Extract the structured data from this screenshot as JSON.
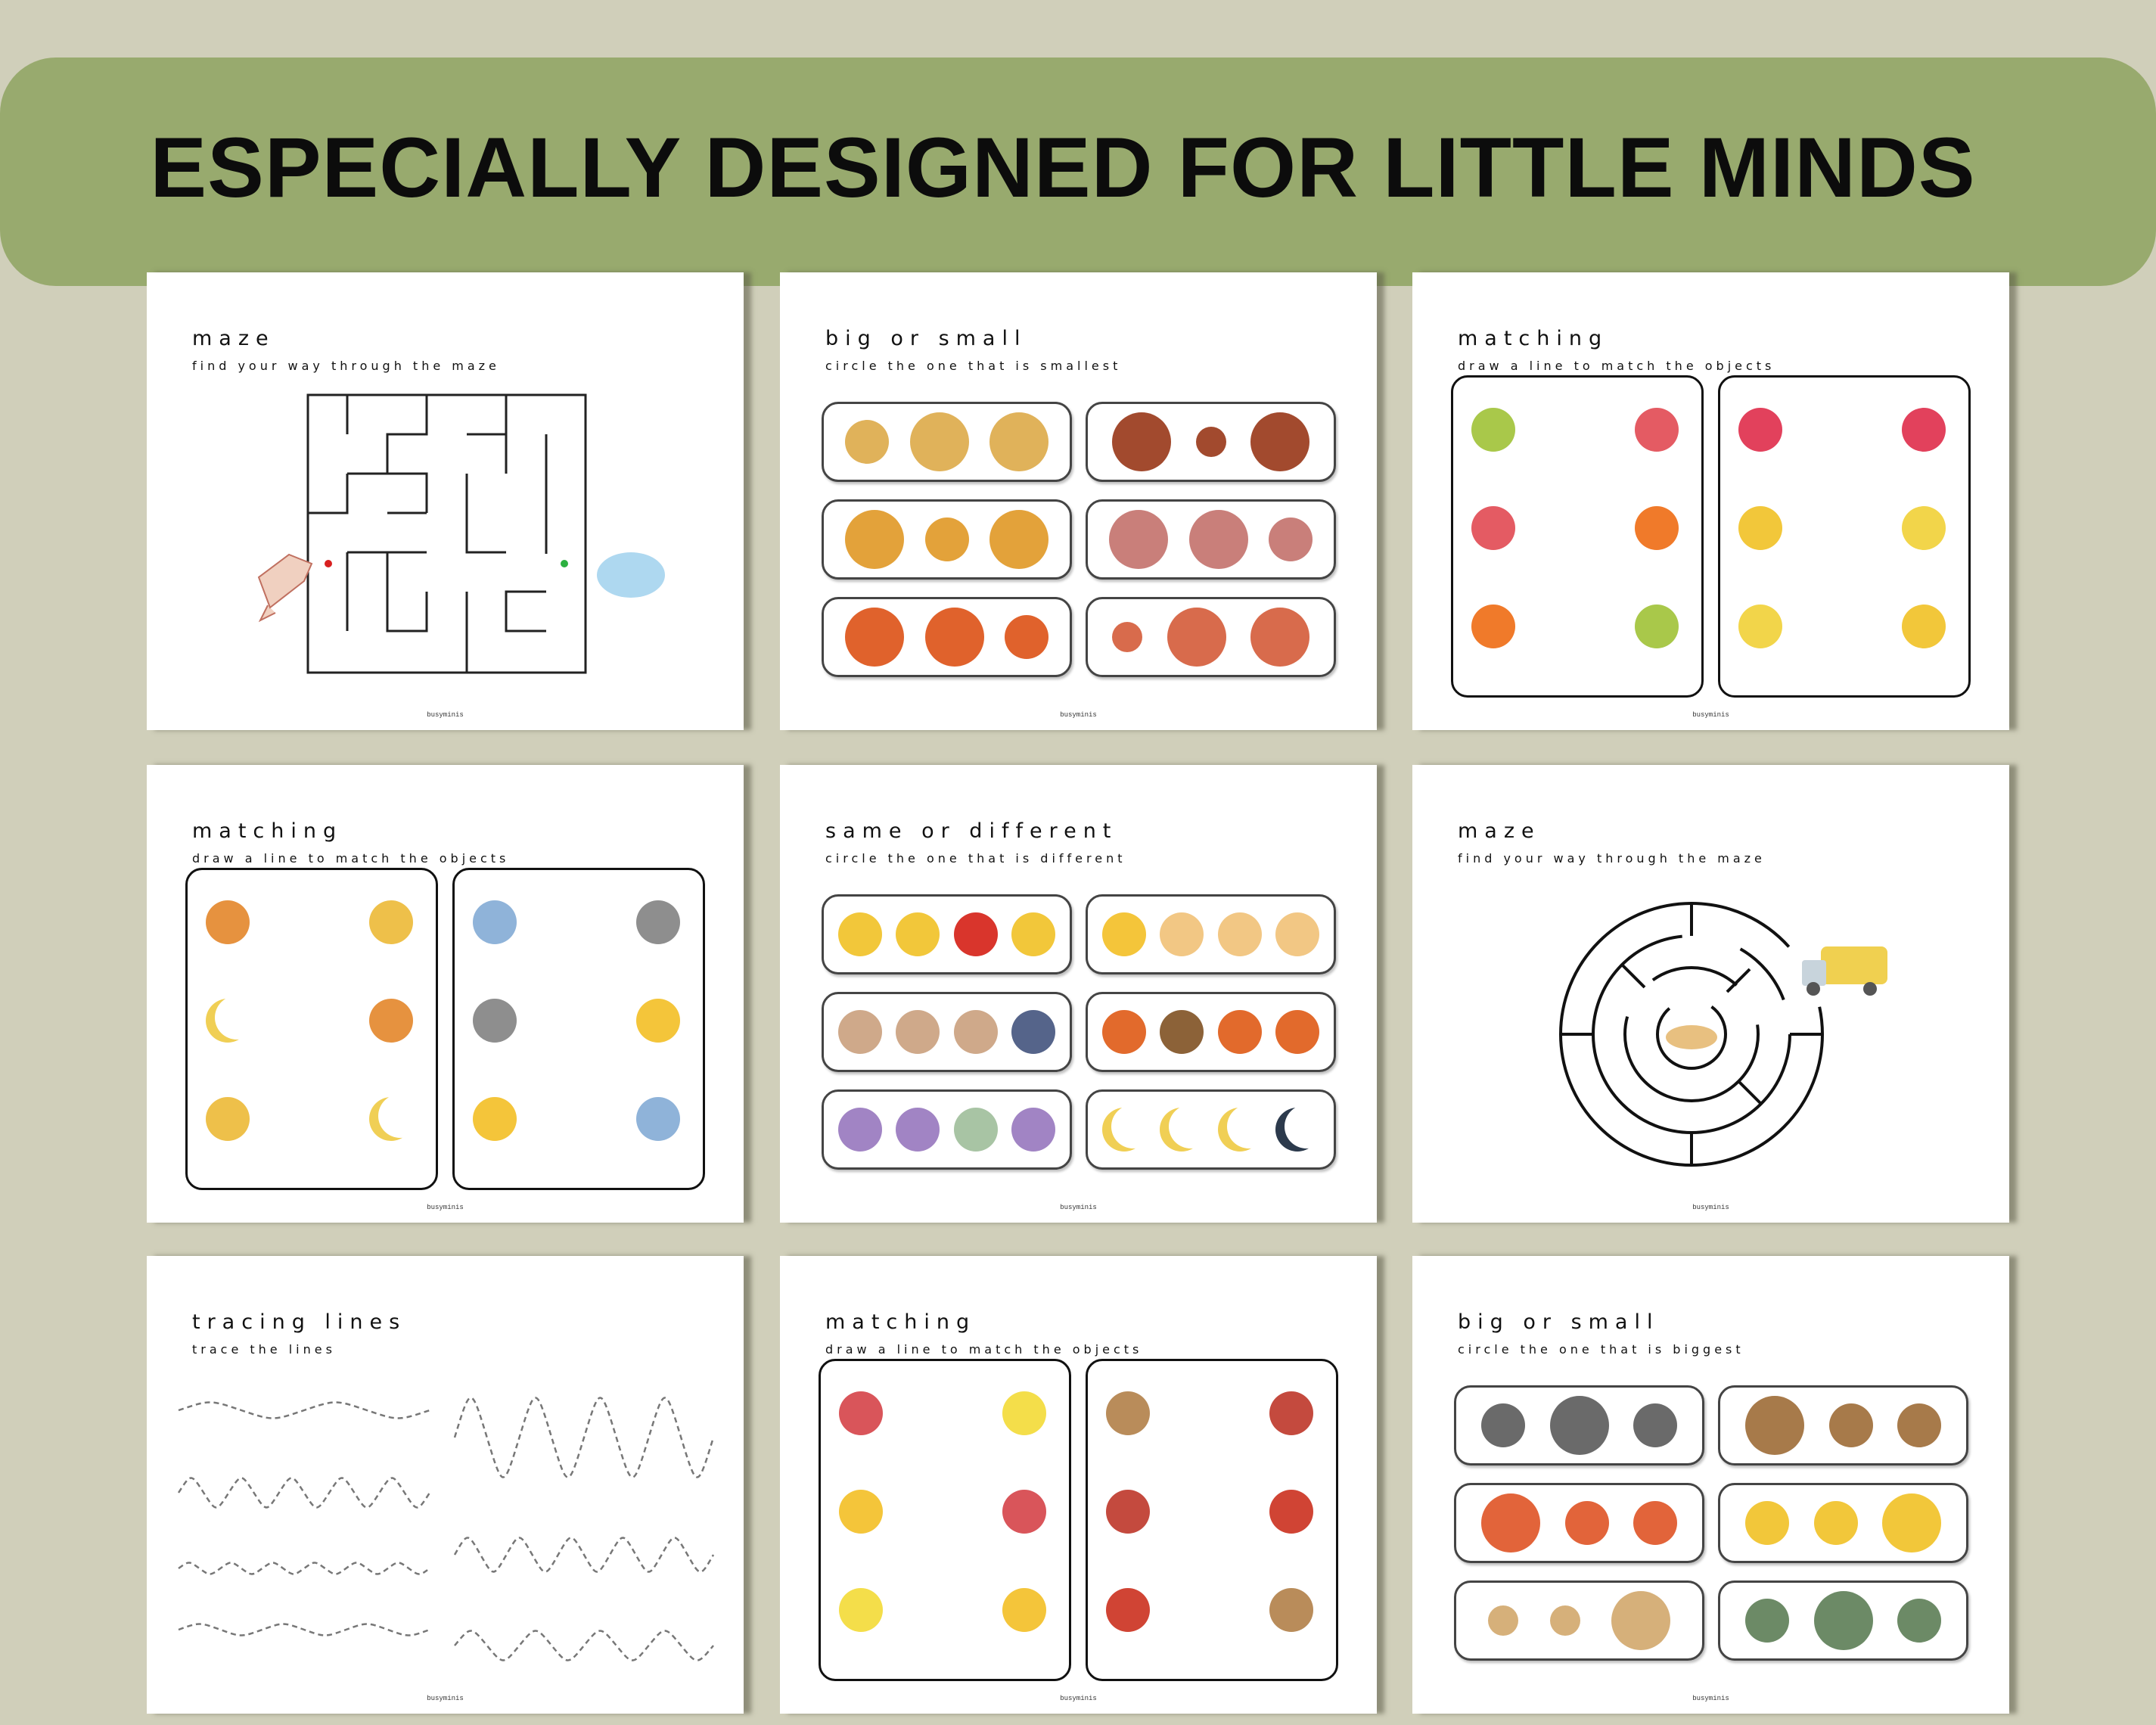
{
  "banner": {
    "title": "ESPECIALLY DESIGNED FOR LITTLE MINDS",
    "color": "#98aa6e"
  },
  "background": "#d0cfba",
  "icon_colors": {
    "sandwich": "#e0b25a",
    "mushroom": "#a24a2e",
    "sunflower": "#e3a23a",
    "book": "#c97f7a",
    "basketball": "#e0622c",
    "mug": "#d86b4c",
    "pear": "#a9c84a",
    "watermelon": "#e45b63",
    "orange": "#f07a2a",
    "strawberry": "#e2415c",
    "pineapple": "#f2c73a",
    "banana": "#f2d54a",
    "orange-moon": "#e6923f",
    "stars": "#eec04a",
    "crescent-moon": "#f0cf55",
    "cloud": "#8fb3d9",
    "rain-cloud": "#8e8e8e",
    "sun": "#f4c53a",
    "apple": "#d9352c",
    "rocket": "#cfa98a",
    "rocket-blue": "#55648a",
    "pumpkin": "#e26a2c",
    "acorn": "#8c6238",
    "octopus": "#a184c4",
    "octopus-green": "#a8c4a4",
    "dark-moon": "#2c3a4c",
    "sun-outline": "#f2c784",
    "basket": "#d9555a",
    "lemonade": "#f4de4a",
    "boots": "#b98c5a",
    "sled": "#c44a3e",
    "winter-hat": "#d04434",
    "cow": "#6a6a6a",
    "snail": "#a77a4a",
    "rocket-red": "#e2643a",
    "train": "#d6b07a",
    "bucket": "#6c8a66"
  },
  "pages": [
    {
      "type": "maze-square",
      "title": "maze",
      "subtitle": "find your way through the maze",
      "footer": "busyminis",
      "start_icon": "kite",
      "end_icon": "cloud"
    },
    {
      "type": "rows",
      "title": "big or small",
      "subtitle": "circle the one that is smallest",
      "footer": "busyminis",
      "boxes": [
        [
          {
            "icon": "sandwich",
            "size": "m"
          },
          {
            "icon": "sandwich",
            "size": "l"
          },
          {
            "icon": "sandwich",
            "size": "l"
          }
        ],
        [
          {
            "icon": "mushroom",
            "size": "l"
          },
          {
            "icon": "mushroom",
            "size": "s"
          },
          {
            "icon": "mushroom",
            "size": "l"
          }
        ],
        [
          {
            "icon": "sunflower",
            "size": "l"
          },
          {
            "icon": "sunflower",
            "size": "m"
          },
          {
            "icon": "sunflower",
            "size": "l"
          }
        ],
        [
          {
            "icon": "book",
            "size": "l"
          },
          {
            "icon": "book",
            "size": "l"
          },
          {
            "icon": "book",
            "size": "m"
          }
        ],
        [
          {
            "icon": "basketball",
            "size": "l"
          },
          {
            "icon": "basketball",
            "size": "l"
          },
          {
            "icon": "basketball",
            "size": "m"
          }
        ],
        [
          {
            "icon": "mug",
            "size": "s"
          },
          {
            "icon": "mug",
            "size": "l"
          },
          {
            "icon": "mug",
            "size": "l"
          }
        ]
      ]
    },
    {
      "type": "matching",
      "title": "matching",
      "subtitle": "draw a line to match the objects",
      "footer": "busyminis",
      "panels": [
        [
          [
            "pear",
            "watermelon"
          ],
          [
            "watermelon",
            "orange"
          ],
          [
            "orange",
            "pear"
          ]
        ],
        [
          [
            "strawberry",
            "strawberry"
          ],
          [
            "pineapple",
            "banana"
          ],
          [
            "banana",
            "pineapple"
          ]
        ]
      ]
    },
    {
      "type": "matching",
      "title": "matching",
      "subtitle": "draw a line to match the objects",
      "footer": "busyminis",
      "panels": [
        [
          [
            "orange-moon",
            "stars"
          ],
          [
            "crescent-moon",
            "orange-moon"
          ],
          [
            "stars",
            "crescent-moon"
          ]
        ],
        [
          [
            "cloud",
            "rain-cloud"
          ],
          [
            "rain-cloud",
            "sun"
          ],
          [
            "sun",
            "cloud"
          ]
        ]
      ]
    },
    {
      "type": "rows",
      "title": "same or different",
      "subtitle": "circle the one that is different",
      "footer": "busyminis",
      "boxes": [
        [
          {
            "icon": "pineapple",
            "size": "m"
          },
          {
            "icon": "pineapple",
            "size": "m"
          },
          {
            "icon": "apple",
            "size": "m"
          },
          {
            "icon": "pineapple",
            "size": "m"
          }
        ],
        [
          {
            "icon": "sun",
            "size": "m"
          },
          {
            "icon": "sun-outline",
            "size": "m"
          },
          {
            "icon": "sun-outline",
            "size": "m"
          },
          {
            "icon": "sun-outline",
            "size": "m"
          }
        ],
        [
          {
            "icon": "rocket",
            "size": "m"
          },
          {
            "icon": "rocket",
            "size": "m"
          },
          {
            "icon": "rocket",
            "size": "m"
          },
          {
            "icon": "rocket-blue",
            "size": "m"
          }
        ],
        [
          {
            "icon": "pumpkin",
            "size": "m"
          },
          {
            "icon": "acorn",
            "size": "m"
          },
          {
            "icon": "pumpkin",
            "size": "m"
          },
          {
            "icon": "pumpkin",
            "size": "m"
          }
        ],
        [
          {
            "icon": "octopus",
            "size": "m"
          },
          {
            "icon": "octopus",
            "size": "m"
          },
          {
            "icon": "octopus-green",
            "size": "m"
          },
          {
            "icon": "octopus",
            "size": "m"
          }
        ],
        [
          {
            "icon": "crescent-moon",
            "size": "m"
          },
          {
            "icon": "crescent-moon",
            "size": "m"
          },
          {
            "icon": "crescent-moon",
            "size": "m"
          },
          {
            "icon": "dark-moon",
            "size": "m"
          }
        ]
      ]
    },
    {
      "type": "maze-circle",
      "title": "maze",
      "subtitle": "find your way through the maze",
      "footer": "busyminis",
      "start_icon": "dump-truck",
      "end_icon": "sand-pile"
    },
    {
      "type": "tracing",
      "title": "tracing lines",
      "subtitle": "trace the lines",
      "footer": "busyminis"
    },
    {
      "type": "matching",
      "title": "matching",
      "subtitle": "draw a line to match the objects",
      "footer": "busyminis",
      "panels": [
        [
          [
            "basket",
            "lemonade"
          ],
          [
            "sun",
            "basket"
          ],
          [
            "lemonade",
            "sun"
          ]
        ],
        [
          [
            "boots",
            "sled"
          ],
          [
            "sled",
            "winter-hat"
          ],
          [
            "winter-hat",
            "boots"
          ]
        ]
      ]
    },
    {
      "type": "rows",
      "title": "big or small",
      "subtitle": "circle the one that is biggest",
      "footer": "busyminis",
      "boxes": [
        [
          {
            "icon": "cow",
            "size": "m"
          },
          {
            "icon": "cow",
            "size": "l"
          },
          {
            "icon": "cow",
            "size": "m"
          }
        ],
        [
          {
            "icon": "snail",
            "size": "l"
          },
          {
            "icon": "snail",
            "size": "m"
          },
          {
            "icon": "snail",
            "size": "m"
          }
        ],
        [
          {
            "icon": "rocket-red",
            "size": "l"
          },
          {
            "icon": "rocket-red",
            "size": "m"
          },
          {
            "icon": "rocket-red",
            "size": "m"
          }
        ],
        [
          {
            "icon": "pineapple",
            "size": "m"
          },
          {
            "icon": "pineapple",
            "size": "m"
          },
          {
            "icon": "pineapple",
            "size": "l"
          }
        ],
        [
          {
            "icon": "train",
            "size": "s"
          },
          {
            "icon": "train",
            "size": "s"
          },
          {
            "icon": "train",
            "size": "l"
          }
        ],
        [
          {
            "icon": "bucket",
            "size": "m"
          },
          {
            "icon": "bucket",
            "size": "l"
          },
          {
            "icon": "bucket",
            "size": "m"
          }
        ]
      ]
    }
  ]
}
